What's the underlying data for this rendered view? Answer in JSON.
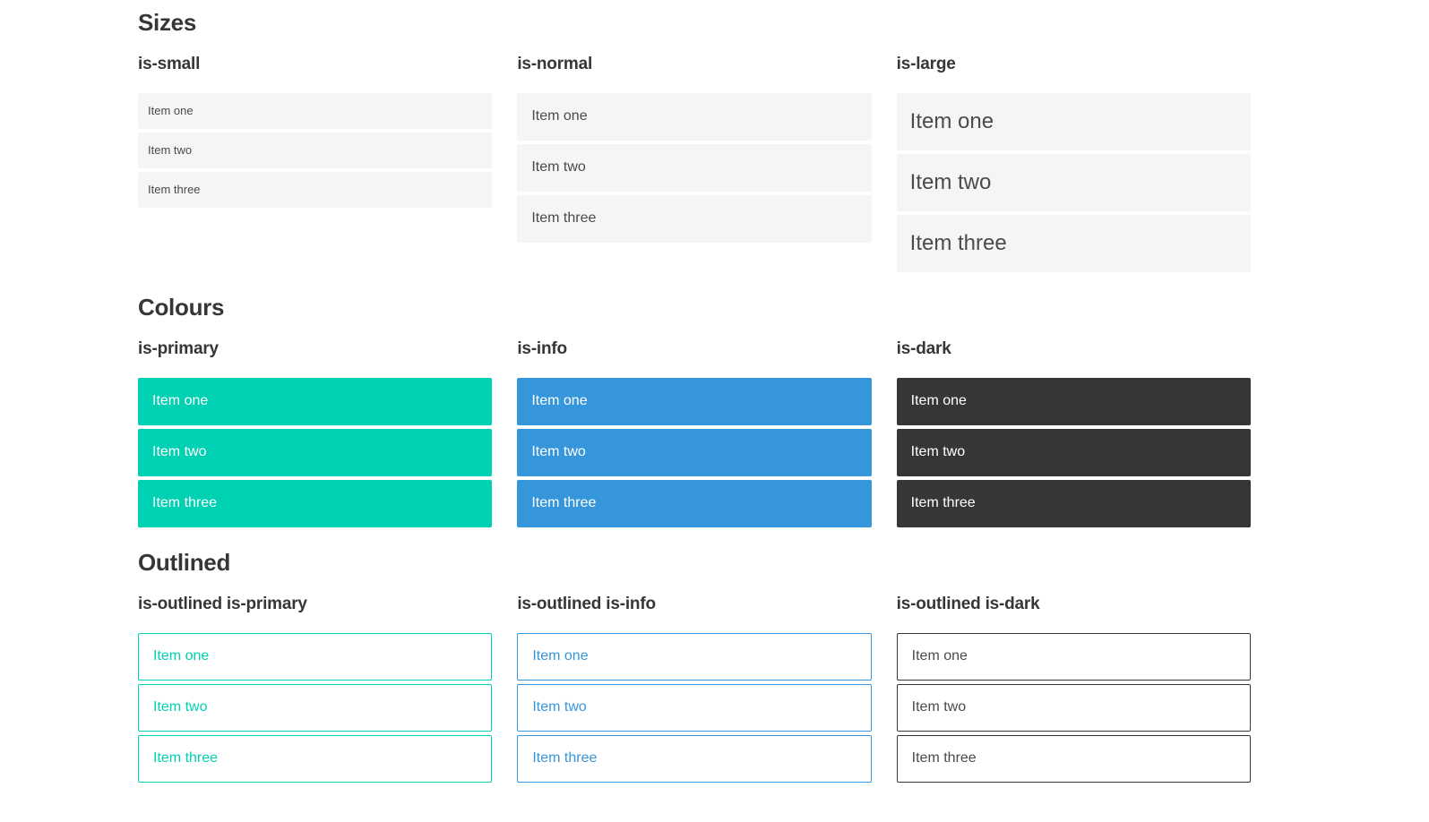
{
  "colors": {
    "primary": "#00d1b2",
    "info": "#3596dc",
    "dark": "#363636",
    "heading": "#363636",
    "item-bg": "#f5f5f5",
    "item-text": "#4a4a4a"
  },
  "sections": [
    {
      "title": "Sizes",
      "variants": [
        {
          "label": "is-small",
          "items": [
            "Item one",
            "Item two",
            "Item three"
          ]
        },
        {
          "label": "is-normal",
          "items": [
            "Item one",
            "Item two",
            "Item three"
          ]
        },
        {
          "label": "is-large",
          "items": [
            "Item one",
            "Item two",
            "Item three"
          ]
        }
      ]
    },
    {
      "title": "Colours",
      "variants": [
        {
          "label": "is-primary",
          "items": [
            "Item one",
            "Item two",
            "Item three"
          ]
        },
        {
          "label": "is-info",
          "items": [
            "Item one",
            "Item two",
            "Item three"
          ]
        },
        {
          "label": "is-dark",
          "items": [
            "Item one",
            "Item two",
            "Item three"
          ]
        }
      ]
    },
    {
      "title": "Outlined",
      "variants": [
        {
          "label": "is-outlined is-primary",
          "items": [
            "Item one",
            "Item two",
            "Item three"
          ]
        },
        {
          "label": "is-outlined is-info",
          "items": [
            "Item one",
            "Item two",
            "Item three"
          ]
        },
        {
          "label": "is-outlined is-dark",
          "items": [
            "Item one",
            "Item two",
            "Item three"
          ]
        }
      ]
    }
  ]
}
